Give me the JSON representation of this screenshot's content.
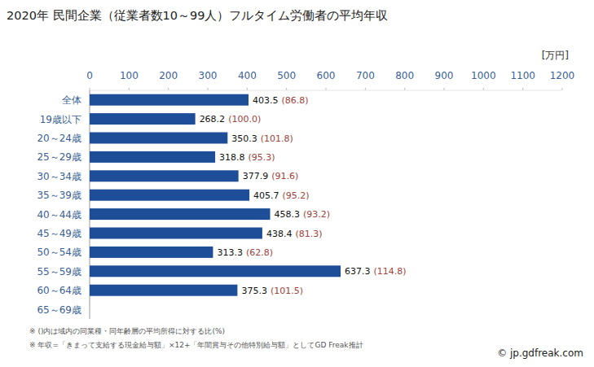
{
  "chart_data": {
    "type": "bar",
    "orientation": "horizontal",
    "title": "2020年 民間企業（従業者数10～99人）フルタイム労働者の平均年収",
    "x_label": "[万円]",
    "categories": [
      "全体",
      "19歳以下",
      "20～24歳",
      "25～29歳",
      "30～34歳",
      "35～39歳",
      "40～44歳",
      "45～49歳",
      "50～54歳",
      "55～59歳",
      "60～64歳",
      "65～69歳"
    ],
    "values": [
      403.5,
      268.2,
      350.3,
      318.8,
      377.9,
      405.7,
      458.3,
      438.4,
      313.3,
      637.3,
      375.3,
      null
    ],
    "ratios": [
      86.8,
      100.0,
      101.8,
      95.3,
      91.6,
      95.2,
      93.2,
      81.3,
      62.8,
      114.8,
      101.5,
      null
    ],
    "ratio_labels": [
      "(86.8)",
      "(100.0)",
      "(101.8)",
      "(95.3)",
      "(91.6)",
      "(95.2)",
      "(93.2)",
      "(81.3)",
      "(62.8)",
      "(114.8)",
      "(101.5)",
      null
    ],
    "color": "#1f4e99",
    "ratio_color": "#a0413a",
    "xlim": [
      0,
      1200
    ],
    "xticks": [
      0,
      100,
      200,
      300,
      400,
      500,
      600,
      700,
      800,
      900,
      1000,
      1100,
      1200
    ],
    "grid": false,
    "data_labels": true,
    "notes": [
      "※ ()内は域内の同業種・同年齢層の平均所得に対する比(%)",
      "※ 年収=「きまって支給する現金給与額」×12+「年間賞与その他特別給与額」としてGD Freak推計"
    ],
    "source": "© jp.gdfreak.com"
  }
}
